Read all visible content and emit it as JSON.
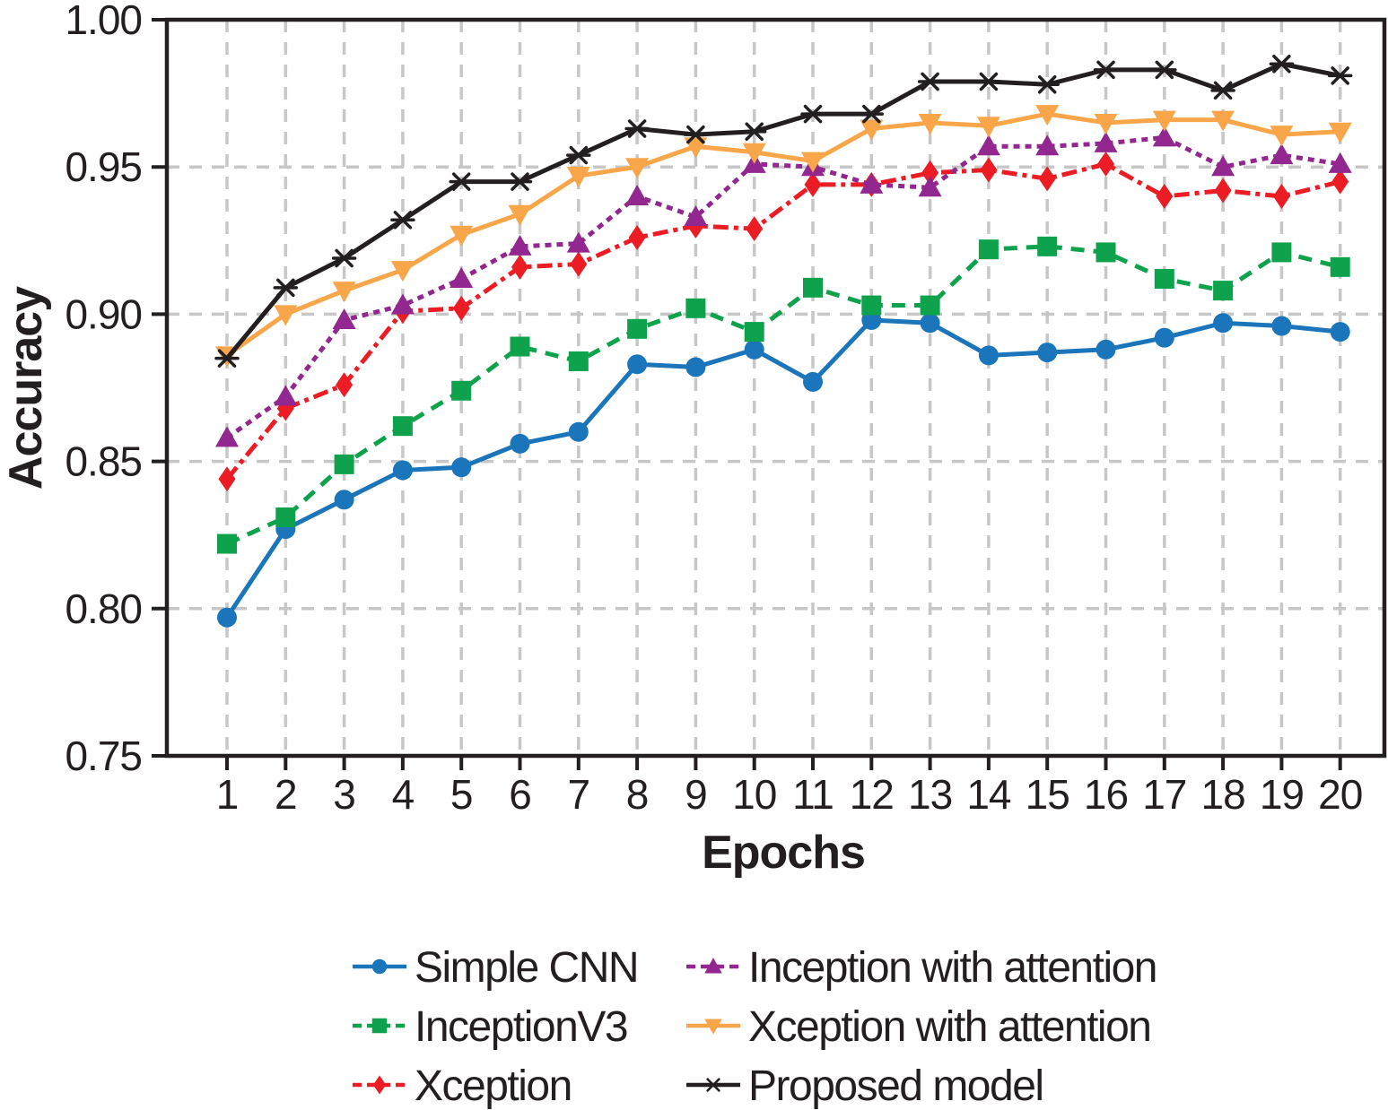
{
  "figure": {
    "background": "#ffffff",
    "grid_color": "#c7c7c7",
    "axis_color": "#231f20",
    "text_color": "#231f20"
  },
  "axes": {
    "x_label": "Epochs",
    "y_label": "Accuracy",
    "x_tick_labels": [
      "1",
      "2",
      "3",
      "4",
      "5",
      "6",
      "7",
      "8",
      "9",
      "10",
      "11",
      "12",
      "13",
      "14",
      "15",
      "16",
      "17",
      "18",
      "19",
      "20"
    ],
    "y_tick_labels": [
      "1.00",
      "0.95",
      "0.90",
      "0.85",
      "0.80",
      "0.75"
    ]
  },
  "chart_data": {
    "type": "line",
    "title": "",
    "xlabel": "Epochs",
    "ylabel": "Accuracy",
    "x": [
      1,
      2,
      3,
      4,
      5,
      6,
      7,
      8,
      9,
      10,
      11,
      12,
      13,
      14,
      15,
      16,
      17,
      18,
      19,
      20
    ],
    "xlim": [
      0,
      21
    ],
    "ylim": [
      0.75,
      1.0
    ],
    "y_ticks": [
      1.0,
      0.95,
      0.9,
      0.85,
      0.8,
      0.75
    ],
    "grid": true,
    "legend_position": "bottom",
    "series": [
      {
        "name": "Simple CNN",
        "color": "#1b75bb",
        "marker": "circle",
        "line_style": "solid",
        "values": [
          0.797,
          0.827,
          0.837,
          0.847,
          0.848,
          0.856,
          0.86,
          0.883,
          0.882,
          0.888,
          0.877,
          0.898,
          0.897,
          0.886,
          0.887,
          0.888,
          0.892,
          0.897,
          0.896,
          0.894
        ]
      },
      {
        "name": "InceptionV3",
        "color": "#0ea24c",
        "marker": "square",
        "line_style": "dashed",
        "values": [
          0.822,
          0.831,
          0.849,
          0.862,
          0.874,
          0.889,
          0.884,
          0.895,
          0.902,
          0.894,
          0.909,
          0.903,
          0.903,
          0.922,
          0.923,
          0.921,
          0.912,
          0.908,
          0.921,
          0.916
        ]
      },
      {
        "name": "Xception",
        "color": "#ec1c24",
        "marker": "diamond",
        "line_style": "dashdot",
        "values": [
          0.844,
          0.868,
          0.876,
          0.901,
          0.902,
          0.916,
          0.917,
          0.926,
          0.93,
          0.929,
          0.944,
          0.944,
          0.948,
          0.949,
          0.946,
          0.951,
          0.94,
          0.942,
          0.94,
          0.945
        ]
      },
      {
        "name": "Inception with attention",
        "color": "#92278f",
        "marker": "triangle-up",
        "line_style": "dense-dash",
        "values": [
          0.858,
          0.872,
          0.898,
          0.903,
          0.912,
          0.923,
          0.924,
          0.94,
          0.933,
          0.951,
          0.95,
          0.944,
          0.943,
          0.957,
          0.957,
          0.958,
          0.96,
          0.95,
          0.954,
          0.951
        ]
      },
      {
        "name": "Xception with attention",
        "color": "#f9a54a",
        "marker": "triangle-down",
        "line_style": "solid",
        "values": [
          0.886,
          0.9,
          0.908,
          0.915,
          0.927,
          0.934,
          0.947,
          0.95,
          0.957,
          0.955,
          0.952,
          0.963,
          0.965,
          0.964,
          0.968,
          0.965,
          0.966,
          0.966,
          0.961,
          0.962
        ]
      },
      {
        "name": "Proposed model",
        "color": "#231f20",
        "marker": "asterisk",
        "line_style": "solid",
        "values": [
          0.885,
          0.909,
          0.919,
          0.932,
          0.945,
          0.945,
          0.954,
          0.963,
          0.961,
          0.962,
          0.968,
          0.968,
          0.979,
          0.979,
          0.978,
          0.983,
          0.983,
          0.976,
          0.985,
          0.981
        ]
      }
    ],
    "legend_columns": [
      [
        0,
        1,
        2
      ],
      [
        3,
        4,
        5
      ]
    ]
  }
}
